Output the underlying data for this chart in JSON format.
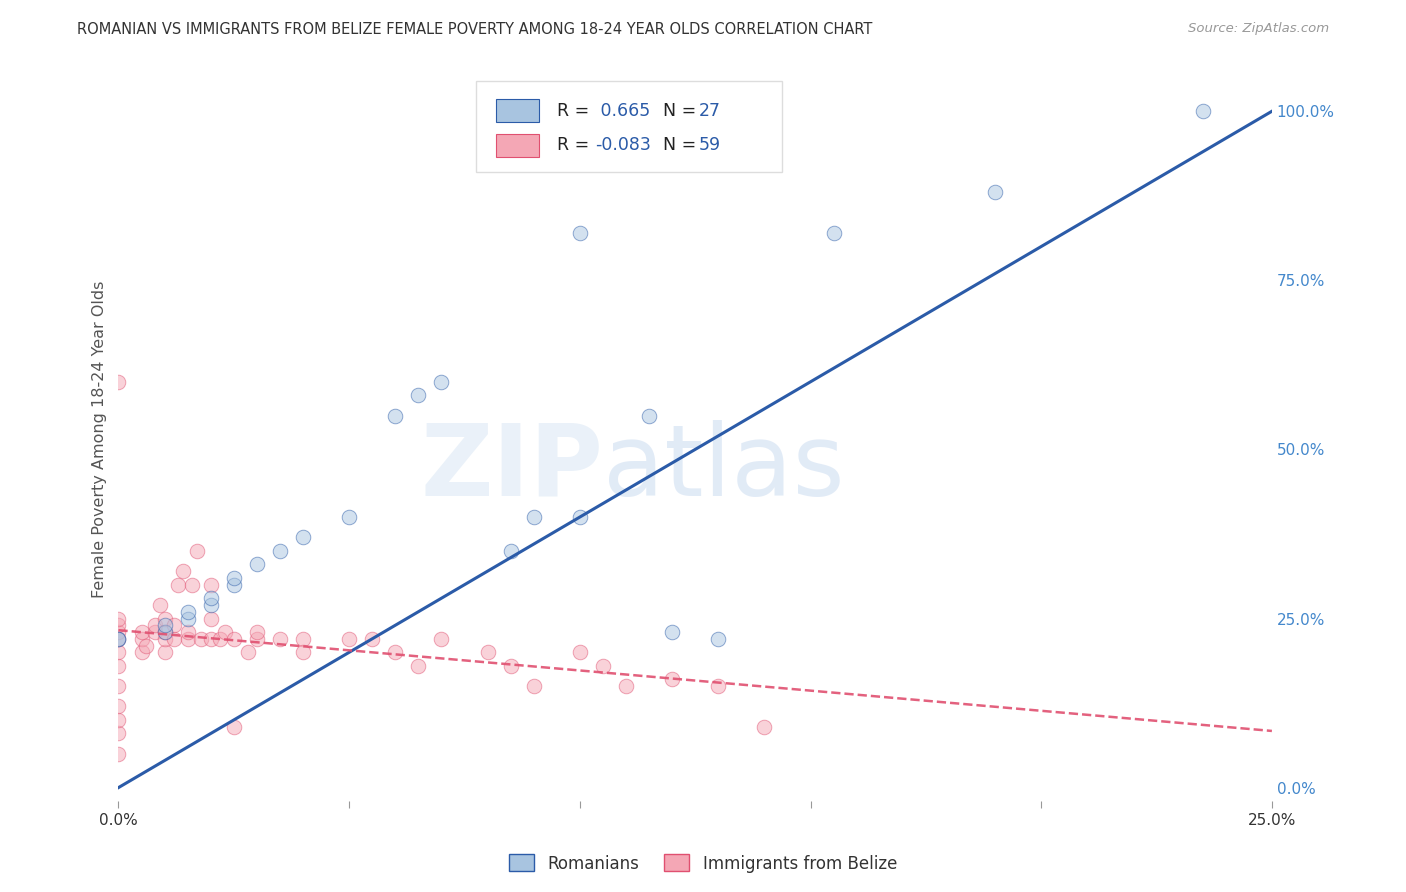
{
  "title": "ROMANIAN VS IMMIGRANTS FROM BELIZE FEMALE POVERTY AMONG 18-24 YEAR OLDS CORRELATION CHART",
  "source": "Source: ZipAtlas.com",
  "ylabel": "Female Poverty Among 18-24 Year Olds",
  "xlim": [
    0.0,
    0.25
  ],
  "ylim": [
    -0.02,
    1.05
  ],
  "xticklabels": [
    "0.0%",
    "",
    "",
    "",
    "",
    "25.0%"
  ],
  "xtick_vals": [
    0.0,
    0.05,
    0.1,
    0.15,
    0.2,
    0.25
  ],
  "yticklabels_right": [
    "100.0%",
    "75.0%",
    "50.0%",
    "25.0%",
    "0.0%"
  ],
  "ytick_vals": [
    1.0,
    0.75,
    0.5,
    0.25,
    0.0
  ],
  "legend_R_blue": "0.665",
  "legend_N_blue": "27",
  "legend_R_pink": "-0.083",
  "legend_N_pink": "59",
  "blue_color": "#A8C4E0",
  "pink_color": "#F4A7B5",
  "trendline_blue_color": "#2B5BA8",
  "trendline_pink_color": "#E05070",
  "legend_blue_label": "Romanians",
  "legend_pink_label": "Immigrants from Belize",
  "watermark_zip": "ZIP",
  "watermark_atlas": "atlas",
  "background_color": "#FFFFFF",
  "grid_color": "#CCCCCC",
  "title_color": "#333333",
  "axis_label_color": "#555555",
  "right_tick_color": "#4488CC",
  "romanians_x": [
    0.0,
    0.0,
    0.01,
    0.01,
    0.015,
    0.015,
    0.02,
    0.02,
    0.025,
    0.025,
    0.03,
    0.035,
    0.04,
    0.05,
    0.06,
    0.065,
    0.07,
    0.085,
    0.09,
    0.1,
    0.1,
    0.115,
    0.12,
    0.13,
    0.155,
    0.19,
    0.235
  ],
  "romanians_y": [
    0.22,
    0.22,
    0.23,
    0.24,
    0.25,
    0.26,
    0.27,
    0.28,
    0.3,
    0.31,
    0.33,
    0.35,
    0.37,
    0.4,
    0.55,
    0.58,
    0.6,
    0.35,
    0.4,
    0.82,
    0.4,
    0.55,
    0.23,
    0.22,
    0.82,
    0.88,
    1.0
  ],
  "belize_x": [
    0.0,
    0.0,
    0.0,
    0.0,
    0.0,
    0.0,
    0.0,
    0.0,
    0.0,
    0.0,
    0.0,
    0.0,
    0.005,
    0.005,
    0.005,
    0.006,
    0.008,
    0.008,
    0.009,
    0.01,
    0.01,
    0.01,
    0.01,
    0.012,
    0.012,
    0.013,
    0.014,
    0.015,
    0.015,
    0.016,
    0.017,
    0.018,
    0.02,
    0.02,
    0.02,
    0.022,
    0.023,
    0.025,
    0.025,
    0.028,
    0.03,
    0.03,
    0.035,
    0.04,
    0.04,
    0.05,
    0.055,
    0.06,
    0.065,
    0.07,
    0.08,
    0.085,
    0.09,
    0.1,
    0.105,
    0.11,
    0.12,
    0.13,
    0.14
  ],
  "belize_y": [
    0.05,
    0.08,
    0.1,
    0.12,
    0.15,
    0.18,
    0.2,
    0.22,
    0.23,
    0.24,
    0.25,
    0.6,
    0.2,
    0.22,
    0.23,
    0.21,
    0.23,
    0.24,
    0.27,
    0.2,
    0.22,
    0.23,
    0.25,
    0.22,
    0.24,
    0.3,
    0.32,
    0.22,
    0.23,
    0.3,
    0.35,
    0.22,
    0.22,
    0.25,
    0.3,
    0.22,
    0.23,
    0.22,
    0.09,
    0.2,
    0.22,
    0.23,
    0.22,
    0.22,
    0.2,
    0.22,
    0.22,
    0.2,
    0.18,
    0.22,
    0.2,
    0.18,
    0.15,
    0.2,
    0.18,
    0.15,
    0.16,
    0.15,
    0.09
  ],
  "marker_size": 110,
  "alpha_scatter": 0.5
}
